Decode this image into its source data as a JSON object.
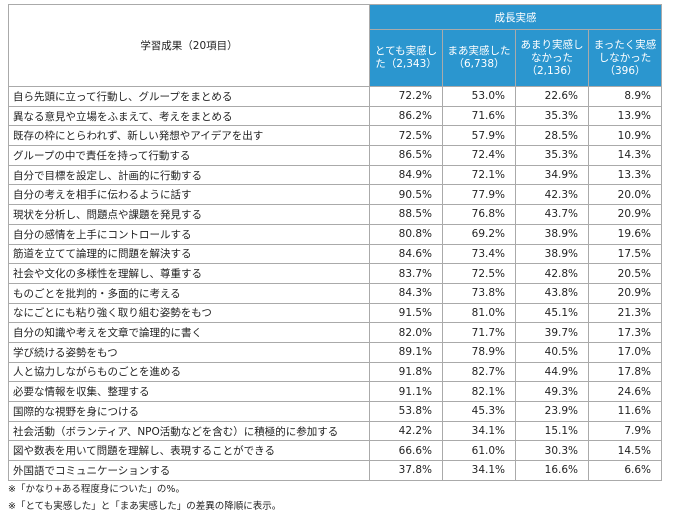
{
  "table": {
    "header": {
      "item": "学習成果（20項目）",
      "group": "成長実感",
      "columns": [
        "とても実感した（2,343）",
        "まあ実感した（6,738）",
        "あまり実感しなかった（2,136）",
        "まったく実感しなかった（396）"
      ]
    },
    "rows": [
      [
        "自ら先頭に立って行動し、グループをまとめる",
        "72.2%",
        "53.0%",
        "22.6%",
        "8.9%"
      ],
      [
        "異なる意見や立場をふまえて、考えをまとめる",
        "86.2%",
        "71.6%",
        "35.3%",
        "13.9%"
      ],
      [
        "既存の枠にとらわれず、新しい発想やアイデアを出す",
        "72.5%",
        "57.9%",
        "28.5%",
        "10.9%"
      ],
      [
        "グループの中で責任を持って行動する",
        "86.5%",
        "72.4%",
        "35.3%",
        "14.3%"
      ],
      [
        "自分で目標を設定し、計画的に行動する",
        "84.9%",
        "72.1%",
        "34.9%",
        "13.3%"
      ],
      [
        "自分の考えを相手に伝わるように話す",
        "90.5%",
        "77.9%",
        "42.3%",
        "20.0%"
      ],
      [
        "現状を分析し、問題点や課題を発見する",
        "88.5%",
        "76.8%",
        "43.7%",
        "20.9%"
      ],
      [
        "自分の感情を上手にコントロールする",
        "80.8%",
        "69.2%",
        "38.9%",
        "19.6%"
      ],
      [
        "筋道を立てて論理的に問題を解決する",
        "84.6%",
        "73.4%",
        "38.9%",
        "17.5%"
      ],
      [
        "社会や文化の多様性を理解し、尊重する",
        "83.7%",
        "72.5%",
        "42.8%",
        "20.5%"
      ],
      [
        "ものごとを批判的・多面的に考える",
        "84.3%",
        "73.8%",
        "43.8%",
        "20.9%"
      ],
      [
        "なにごとにも粘り強く取り組む姿勢をもつ",
        "91.5%",
        "81.0%",
        "45.1%",
        "21.3%"
      ],
      [
        "自分の知識や考えを文章で論理的に書く",
        "82.0%",
        "71.7%",
        "39.7%",
        "17.3%"
      ],
      [
        "学び続ける姿勢をもつ",
        "89.1%",
        "78.9%",
        "40.5%",
        "17.0%"
      ],
      [
        "人と協力しながらものごとを進める",
        "91.8%",
        "82.7%",
        "44.9%",
        "17.8%"
      ],
      [
        "必要な情報を収集、整理する",
        "91.1%",
        "82.1%",
        "49.3%",
        "24.6%"
      ],
      [
        "国際的な視野を身につける",
        "53.8%",
        "45.3%",
        "23.9%",
        "11.6%"
      ],
      [
        "社会活動（ボランティア、NPO活動などを含む）に積極的に参加する",
        "42.2%",
        "34.1%",
        "15.1%",
        "7.9%"
      ],
      [
        "図や数表を用いて問題を理解し、表現することができる",
        "66.6%",
        "61.0%",
        "30.3%",
        "14.5%"
      ],
      [
        "外国語でコミュニケーションする",
        "37.8%",
        "34.1%",
        "16.6%",
        "6.6%"
      ]
    ]
  },
  "notes": [
    "※「かなり+ある程度身についた」の%。",
    "※「とても実感した」と「まあ実感した」の差異の降順に表示。"
  ]
}
